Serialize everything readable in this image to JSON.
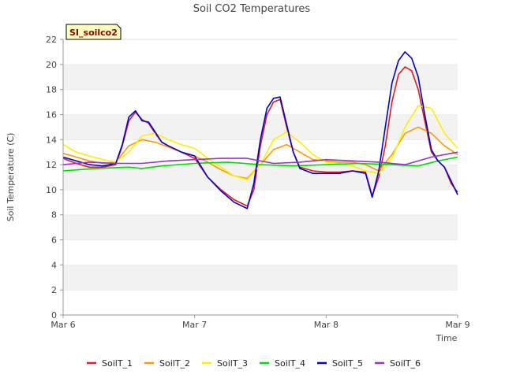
{
  "chart_data": {
    "type": "line",
    "title": "Soil CO2 Temperatures",
    "xlabel": "Time",
    "ylabel": "Soil Temperature (C)",
    "tag": "SI_soilco2",
    "xlim": [
      0,
      3
    ],
    "ylim": [
      0,
      22
    ],
    "yticks": [
      0,
      2,
      4,
      6,
      8,
      10,
      12,
      14,
      16,
      18,
      20,
      22
    ],
    "xticks": [
      {
        "value": 0,
        "label": "Mar 6"
      },
      {
        "value": 1,
        "label": "Mar 7"
      },
      {
        "value": 2,
        "label": "Mar 8"
      },
      {
        "value": 3,
        "label": "Mar 9"
      }
    ],
    "grid": "horizontal alternating bands",
    "legend_position": "bottom",
    "series": [
      {
        "name": "SoilT_1",
        "color": "#e41a1c",
        "x": [
          0,
          0.1,
          0.2,
          0.3,
          0.4,
          0.45,
          0.5,
          0.55,
          0.6,
          0.65,
          0.7,
          0.75,
          0.8,
          0.9,
          1.0,
          1.1,
          1.2,
          1.3,
          1.4,
          1.45,
          1.5,
          1.55,
          1.6,
          1.65,
          1.7,
          1.75,
          1.8,
          1.9,
          2.0,
          2.1,
          2.2,
          2.3,
          2.35,
          2.4,
          2.45,
          2.5,
          2.55,
          2.6,
          2.65,
          2.7,
          2.75,
          2.8,
          2.85,
          2.9,
          2.95,
          3.0
        ],
        "y": [
          12.5,
          12.1,
          11.8,
          11.8,
          12.0,
          13.5,
          15.5,
          16.2,
          15.6,
          15.3,
          14.5,
          13.8,
          13.5,
          13.0,
          12.5,
          11.0,
          10.0,
          9.2,
          8.7,
          10.0,
          13.5,
          16.0,
          17.0,
          17.2,
          15.0,
          13.0,
          11.8,
          11.5,
          11.4,
          11.4,
          11.5,
          11.4,
          9.5,
          11.0,
          13.5,
          17.0,
          19.2,
          19.8,
          19.5,
          18.0,
          15.5,
          13.0,
          12.3,
          11.8,
          10.5,
          9.8
        ]
      },
      {
        "name": "SoilT_2",
        "color": "#ff9900",
        "x": [
          0,
          0.1,
          0.2,
          0.3,
          0.4,
          0.5,
          0.6,
          0.7,
          0.8,
          0.9,
          1.0,
          1.1,
          1.2,
          1.3,
          1.4,
          1.5,
          1.6,
          1.7,
          1.8,
          1.9,
          2.0,
          2.1,
          2.2,
          2.3,
          2.4,
          2.5,
          2.6,
          2.7,
          2.8,
          2.9,
          3.0
        ],
        "y": [
          12.9,
          12.6,
          12.3,
          12.1,
          12.2,
          13.5,
          14.0,
          13.8,
          13.4,
          13.0,
          12.7,
          12.2,
          11.6,
          11.1,
          10.9,
          12.0,
          13.2,
          13.6,
          13.0,
          12.4,
          12.3,
          12.2,
          12.2,
          12.0,
          11.5,
          12.8,
          14.5,
          15.0,
          14.5,
          13.5,
          12.8
        ]
      },
      {
        "name": "SoilT_3",
        "color": "#ffee00",
        "x": [
          0,
          0.1,
          0.2,
          0.3,
          0.4,
          0.5,
          0.6,
          0.7,
          0.8,
          0.9,
          1.0,
          1.1,
          1.2,
          1.3,
          1.4,
          1.5,
          1.6,
          1.7,
          1.8,
          1.9,
          2.0,
          2.1,
          2.2,
          2.3,
          2.4,
          2.5,
          2.6,
          2.7,
          2.8,
          2.9,
          3.0
        ],
        "y": [
          13.6,
          13.0,
          12.7,
          12.4,
          12.2,
          13.0,
          14.3,
          14.5,
          14.0,
          13.6,
          13.3,
          12.5,
          11.8,
          11.1,
          10.8,
          12.0,
          14.0,
          14.6,
          13.8,
          12.8,
          12.2,
          12.1,
          11.9,
          11.5,
          11.3,
          12.5,
          15.0,
          16.7,
          16.5,
          14.5,
          13.3
        ]
      },
      {
        "name": "SoilT_4",
        "color": "#00dd00",
        "x": [
          0,
          0.25,
          0.5,
          0.6,
          0.75,
          1.0,
          1.25,
          1.5,
          1.75,
          2.0,
          2.25,
          2.5,
          2.7,
          2.85,
          3.0
        ],
        "y": [
          11.5,
          11.7,
          11.8,
          11.7,
          11.9,
          12.1,
          12.2,
          12.0,
          11.9,
          12.0,
          12.1,
          12.0,
          11.9,
          12.3,
          12.6
        ]
      },
      {
        "name": "SoilT_5",
        "color": "#0000cc",
        "x": [
          0,
          0.1,
          0.2,
          0.3,
          0.4,
          0.45,
          0.5,
          0.55,
          0.6,
          0.65,
          0.7,
          0.75,
          0.8,
          0.9,
          1.0,
          1.1,
          1.2,
          1.3,
          1.4,
          1.45,
          1.5,
          1.55,
          1.6,
          1.65,
          1.7,
          1.75,
          1.8,
          1.9,
          2.0,
          2.1,
          2.2,
          2.3,
          2.35,
          2.4,
          2.45,
          2.5,
          2.55,
          2.6,
          2.65,
          2.7,
          2.75,
          2.8,
          2.85,
          2.9,
          2.95,
          3.0
        ],
        "y": [
          12.6,
          12.3,
          12.0,
          11.9,
          12.1,
          13.6,
          15.8,
          16.3,
          15.5,
          15.4,
          14.6,
          13.8,
          13.5,
          13.0,
          12.7,
          11.0,
          9.9,
          9.0,
          8.5,
          10.5,
          14.0,
          16.5,
          17.3,
          17.4,
          15.2,
          13.0,
          11.7,
          11.3,
          11.3,
          11.3,
          11.5,
          11.3,
          9.4,
          11.5,
          15.0,
          18.5,
          20.3,
          21.0,
          20.5,
          19.0,
          16.0,
          13.2,
          12.3,
          11.8,
          10.7,
          9.6
        ]
      },
      {
        "name": "SoilT_6",
        "color": "#9933cc",
        "x": [
          0,
          0.2,
          0.4,
          0.6,
          0.8,
          1.0,
          1.2,
          1.4,
          1.6,
          1.8,
          2.0,
          2.2,
          2.4,
          2.6,
          2.8,
          3.0
        ],
        "y": [
          12.0,
          12.2,
          12.1,
          12.1,
          12.3,
          12.4,
          12.5,
          12.5,
          12.1,
          12.2,
          12.4,
          12.3,
          12.2,
          12.0,
          12.6,
          13.0
        ]
      }
    ]
  }
}
